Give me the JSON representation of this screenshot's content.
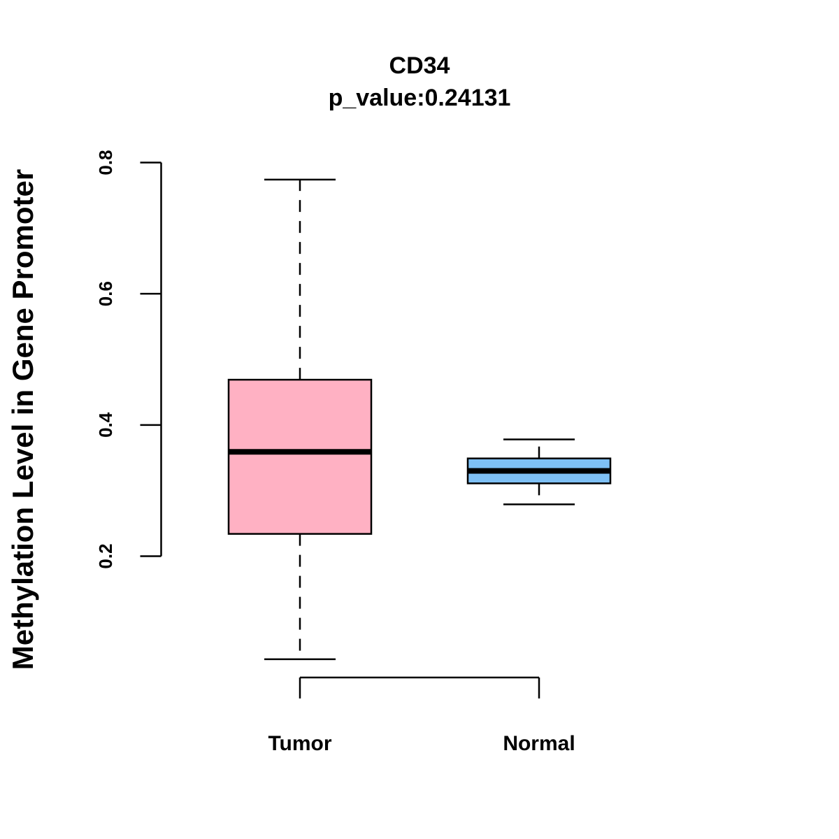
{
  "chart_data": {
    "type": "boxplot",
    "title": "CD34",
    "subtitle": "p_value:0.24131",
    "xlabel": "",
    "ylabel": "Methylation Level in Gene Promoter",
    "ylim": [
      0.2,
      0.8
    ],
    "yticks": [
      0.2,
      0.4,
      0.6,
      0.8
    ],
    "ytick_labels": [
      "0.2",
      "0.4",
      "0.6",
      "0.8"
    ],
    "categories": [
      "Tumor",
      "Normal"
    ],
    "series": [
      {
        "name": "Tumor",
        "min": 0.043,
        "q1": 0.234,
        "median": 0.359,
        "q3": 0.469,
        "max": 0.774,
        "fill": "#FFB1C3"
      },
      {
        "name": "Normal",
        "min": 0.279,
        "q1": 0.311,
        "median": 0.33,
        "q3": 0.349,
        "max": 0.378,
        "fill": "#7EC0F5"
      }
    ],
    "grid": false
  }
}
